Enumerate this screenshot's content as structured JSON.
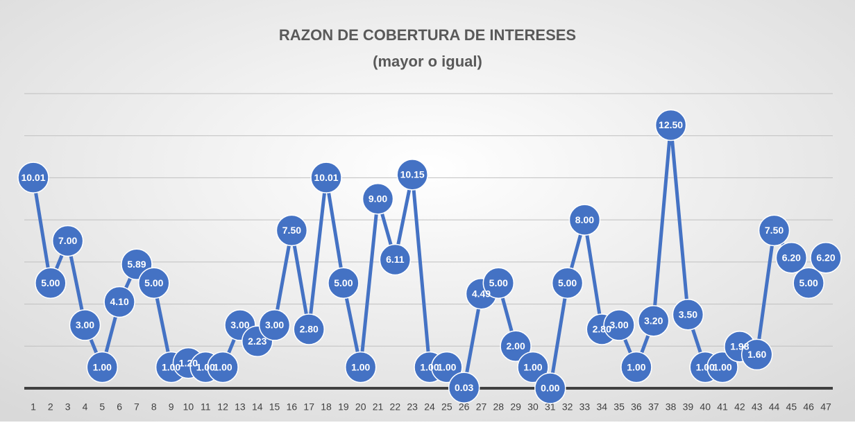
{
  "chart_data": {
    "type": "line",
    "title": "RAZON DE COBERTURA DE INTERESES",
    "subtitle": "(mayor o igual)",
    "categories": [
      "1",
      "2",
      "3",
      "4",
      "5",
      "6",
      "7",
      "8",
      "9",
      "10",
      "11",
      "12",
      "13",
      "14",
      "15",
      "16",
      "17",
      "18",
      "19",
      "20",
      "21",
      "22",
      "23",
      "24",
      "25",
      "26",
      "27",
      "28",
      "29",
      "30",
      "31",
      "32",
      "33",
      "34",
      "35",
      "36",
      "37",
      "38",
      "39",
      "40",
      "41",
      "42",
      "43",
      "44",
      "45",
      "46",
      "47"
    ],
    "values": [
      10.01,
      5,
      7,
      3,
      1,
      4.1,
      5.89,
      5,
      1,
      1.2,
      1,
      1,
      3,
      2.23,
      3,
      7.5,
      2.8,
      10.01,
      5,
      1,
      9,
      6.11,
      10.15,
      1,
      1,
      0.03,
      4.49,
      5,
      2,
      1,
      0,
      5,
      8,
      2.8,
      3,
      1,
      3.2,
      12.5,
      3.5,
      1,
      1,
      1.98,
      1.6,
      7.5,
      6.2,
      5,
      6.2
    ],
    "value_labels": [
      "10.01",
      "5.00",
      "7.00",
      "3.00",
      "1.00",
      "4.10",
      "5.89",
      "5.00",
      "1.00",
      "1.20",
      "1.00",
      "1.00",
      "3.00",
      "2.23",
      "3.00",
      "7.50",
      "2.80",
      "10.01",
      "5.00",
      "1.00",
      "9.00",
      "6.11",
      "10.15",
      "1.00",
      "1.00",
      "0.03",
      "4.49",
      "5.00",
      "2.00",
      "1.00",
      "0.00",
      "5.00",
      "8.00",
      "2.80",
      "3.00",
      "1.00",
      "3.20",
      "12.50",
      "3.50",
      "1.00",
      "1.00",
      "1.98",
      "1.60",
      "7.50",
      "6.20",
      "5.00",
      "6.20"
    ],
    "color": "#4472c4",
    "ylim": [
      0,
      14
    ],
    "yticks": [
      0,
      2,
      4,
      6,
      8,
      10,
      12,
      14
    ],
    "grid": true
  }
}
